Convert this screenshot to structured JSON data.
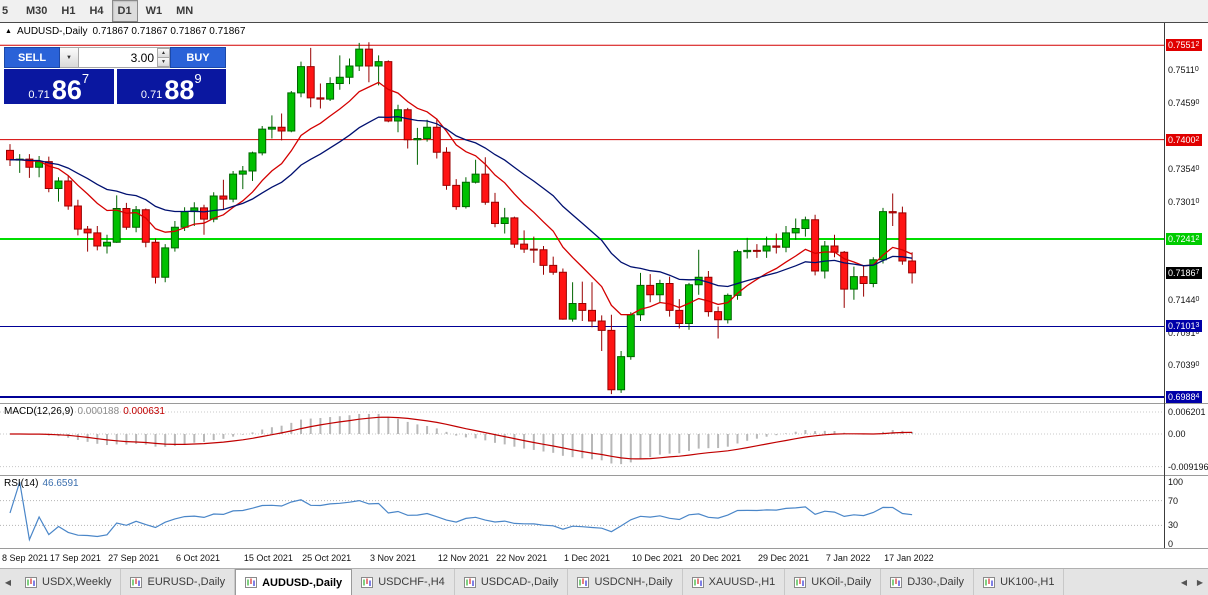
{
  "colors": {
    "button_blue": "#2a62d8",
    "price_navy": "#0a17a0",
    "toolbar_bg": "#f0f0f0",
    "tab_bg": "#e4e4e4"
  },
  "icons": {
    "marker": "▲",
    "dropdown": "▼",
    "spin_up": "▲",
    "spin_down": "▼",
    "scroll_left": "◀",
    "scroll_right": "▶"
  },
  "toolbar": {
    "timeframes": [
      {
        "label": "5",
        "active": false,
        "partial": true
      },
      {
        "label": "M30",
        "active": false
      },
      {
        "label": "H1",
        "active": false
      },
      {
        "label": "H4",
        "active": false
      },
      {
        "label": "D1",
        "active": true
      },
      {
        "label": "W1",
        "active": false
      },
      {
        "label": "MN",
        "active": false
      }
    ]
  },
  "chart": {
    "marker": "▲",
    "title": "AUDUSD-,Daily",
    "ohlc_text": "0.71867 0.71867 0.71867 0.71867"
  },
  "trade_panel": {
    "sell_label": "SELL",
    "buy_label": "BUY",
    "volume": "3.00",
    "sell_price": {
      "small": "0.71",
      "big": "86",
      "sup": "7"
    },
    "buy_price": {
      "small": "0.71",
      "big": "88",
      "sup": "9"
    }
  },
  "chart_data": {
    "type": "candlestick",
    "symbol": "AUDUSD-",
    "period": "Daily",
    "current_price": 0.71867,
    "colors": {
      "up": "#00c000",
      "up_stroke": "#006400",
      "down": "#ff1414",
      "down_stroke": "#990000"
    },
    "candles": [
      [
        0.7383,
        0.7393,
        0.7358,
        0.7368
      ],
      [
        0.7368,
        0.7377,
        0.7347,
        0.7369
      ],
      [
        0.7369,
        0.7377,
        0.7339,
        0.7356
      ],
      [
        0.7356,
        0.7374,
        0.734,
        0.7365
      ],
      [
        0.7365,
        0.7373,
        0.7316,
        0.7322
      ],
      [
        0.7322,
        0.734,
        0.7301,
        0.7334
      ],
      [
        0.7334,
        0.7343,
        0.7288,
        0.7294
      ],
      [
        0.7294,
        0.7304,
        0.7247,
        0.7257
      ],
      [
        0.7257,
        0.7262,
        0.7221,
        0.7251
      ],
      [
        0.7251,
        0.7262,
        0.7223,
        0.723
      ],
      [
        0.723,
        0.7248,
        0.7218,
        0.7236
      ],
      [
        0.7236,
        0.7311,
        0.7235,
        0.729
      ],
      [
        0.729,
        0.7299,
        0.7256,
        0.726
      ],
      [
        0.726,
        0.7294,
        0.7252,
        0.7288
      ],
      [
        0.7288,
        0.729,
        0.7228,
        0.7236
      ],
      [
        0.7236,
        0.7242,
        0.717,
        0.718
      ],
      [
        0.718,
        0.7233,
        0.7172,
        0.7227
      ],
      [
        0.7227,
        0.727,
        0.7221,
        0.726
      ],
      [
        0.726,
        0.7292,
        0.7254,
        0.7285
      ],
      [
        0.7285,
        0.73,
        0.7262,
        0.7291
      ],
      [
        0.7291,
        0.7296,
        0.7248,
        0.7273
      ],
      [
        0.7273,
        0.7316,
        0.7268,
        0.731
      ],
      [
        0.731,
        0.7336,
        0.7288,
        0.7305
      ],
      [
        0.7305,
        0.735,
        0.73,
        0.7345
      ],
      [
        0.7345,
        0.7358,
        0.7321,
        0.735
      ],
      [
        0.735,
        0.7381,
        0.7334,
        0.7379
      ],
      [
        0.7379,
        0.7422,
        0.7375,
        0.7417
      ],
      [
        0.7417,
        0.7439,
        0.7402,
        0.742
      ],
      [
        0.742,
        0.7442,
        0.7399,
        0.7414
      ],
      [
        0.7414,
        0.7478,
        0.7412,
        0.7475
      ],
      [
        0.7475,
        0.7525,
        0.7468,
        0.7517
      ],
      [
        0.7517,
        0.7547,
        0.7452,
        0.7467
      ],
      [
        0.7467,
        0.749,
        0.745,
        0.7465
      ],
      [
        0.7465,
        0.75,
        0.7462,
        0.749
      ],
      [
        0.749,
        0.7535,
        0.748,
        0.75
      ],
      [
        0.75,
        0.753,
        0.7489,
        0.7518
      ],
      [
        0.7518,
        0.7555,
        0.751,
        0.7545
      ],
      [
        0.7545,
        0.7556,
        0.7492,
        0.7518
      ],
      [
        0.7518,
        0.7535,
        0.7487,
        0.7525
      ],
      [
        0.7525,
        0.7527,
        0.7428,
        0.743
      ],
      [
        0.743,
        0.7456,
        0.7412,
        0.7448
      ],
      [
        0.7448,
        0.7451,
        0.7386,
        0.74
      ],
      [
        0.74,
        0.7419,
        0.736,
        0.7402
      ],
      [
        0.7402,
        0.7432,
        0.7397,
        0.742
      ],
      [
        0.742,
        0.7434,
        0.737,
        0.738
      ],
      [
        0.738,
        0.7388,
        0.732,
        0.7327
      ],
      [
        0.7327,
        0.7337,
        0.7288,
        0.7293
      ],
      [
        0.7293,
        0.734,
        0.729,
        0.7332
      ],
      [
        0.7332,
        0.7368,
        0.733,
        0.7345
      ],
      [
        0.7345,
        0.7372,
        0.7296,
        0.73
      ],
      [
        0.73,
        0.7315,
        0.726,
        0.7266
      ],
      [
        0.7266,
        0.7291,
        0.725,
        0.7275
      ],
      [
        0.7275,
        0.7277,
        0.7227,
        0.7233
      ],
      [
        0.7233,
        0.7255,
        0.7219,
        0.7225
      ],
      [
        0.7225,
        0.7245,
        0.7203,
        0.7224
      ],
      [
        0.7224,
        0.723,
        0.7184,
        0.7199
      ],
      [
        0.7199,
        0.7213,
        0.7184,
        0.7188
      ],
      [
        0.7188,
        0.7194,
        0.7112,
        0.7113
      ],
      [
        0.7113,
        0.7172,
        0.7109,
        0.7138
      ],
      [
        0.7138,
        0.7173,
        0.711,
        0.7127
      ],
      [
        0.7127,
        0.7172,
        0.71,
        0.711
      ],
      [
        0.711,
        0.7119,
        0.7062,
        0.7095
      ],
      [
        0.7095,
        0.712,
        0.6993,
        0.7
      ],
      [
        0.7,
        0.7062,
        0.6995,
        0.7053
      ],
      [
        0.7053,
        0.7124,
        0.7048,
        0.712
      ],
      [
        0.712,
        0.7187,
        0.711,
        0.7167
      ],
      [
        0.7167,
        0.7185,
        0.714,
        0.7152
      ],
      [
        0.7152,
        0.7176,
        0.7139,
        0.717
      ],
      [
        0.717,
        0.7181,
        0.7117,
        0.7127
      ],
      [
        0.7127,
        0.7145,
        0.7098,
        0.7106
      ],
      [
        0.7106,
        0.7171,
        0.7096,
        0.7168
      ],
      [
        0.7168,
        0.7224,
        0.7152,
        0.718
      ],
      [
        0.718,
        0.719,
        0.7117,
        0.7125
      ],
      [
        0.7125,
        0.7133,
        0.7082,
        0.7112
      ],
      [
        0.7112,
        0.7154,
        0.7106,
        0.7151
      ],
      [
        0.7151,
        0.7224,
        0.7144,
        0.7221
      ],
      [
        0.7221,
        0.7243,
        0.721,
        0.7223
      ],
      [
        0.7223,
        0.7233,
        0.7211,
        0.7222
      ],
      [
        0.7222,
        0.7245,
        0.7211,
        0.723
      ],
      [
        0.723,
        0.725,
        0.7218,
        0.7228
      ],
      [
        0.7228,
        0.7262,
        0.722,
        0.7251
      ],
      [
        0.7251,
        0.7274,
        0.724,
        0.7258
      ],
      [
        0.7258,
        0.7277,
        0.7245,
        0.7272
      ],
      [
        0.7272,
        0.728,
        0.7183,
        0.719
      ],
      [
        0.719,
        0.7238,
        0.7178,
        0.723
      ],
      [
        0.723,
        0.7248,
        0.7212,
        0.722
      ],
      [
        0.722,
        0.7222,
        0.7131,
        0.7161
      ],
      [
        0.7161,
        0.7197,
        0.7144,
        0.7181
      ],
      [
        0.7181,
        0.7199,
        0.7149,
        0.717
      ],
      [
        0.717,
        0.7212,
        0.7164,
        0.7208
      ],
      [
        0.7208,
        0.7291,
        0.7202,
        0.7285
      ],
      [
        0.7285,
        0.7314,
        0.7262,
        0.7283
      ],
      [
        0.7283,
        0.7293,
        0.72,
        0.7206
      ],
      [
        0.7206,
        0.722,
        0.717,
        0.7187
      ]
    ],
    "ma": [
      {
        "name": "ma-fast",
        "type": "ema",
        "period": 10,
        "color": "#d40000"
      },
      {
        "name": "ma-slow",
        "type": "ema",
        "period": 22,
        "color": "#001070"
      }
    ],
    "hlines": [
      {
        "price": 0.75512,
        "color": "#d40000",
        "width": 1
      },
      {
        "price": 0.74002,
        "color": "#d40000",
        "width": 1
      },
      {
        "price": 0.72412,
        "color": "#00dd00",
        "width": 2
      },
      {
        "price": 0.71013,
        "color": "#000096",
        "width": 1
      },
      {
        "price": 0.69884,
        "color": "#000096",
        "width": 2
      }
    ],
    "price_axis": {
      "plain_labels": [
        {
          "price": 0.7511,
          "text": "0.75110"
        },
        {
          "price": 0.7459,
          "text": "0.74590"
        },
        {
          "price": 0.7354,
          "text": "0.73540"
        },
        {
          "price": 0.7301,
          "text": "0.73010"
        },
        {
          "price": 0.7144,
          "text": "0.71440"
        },
        {
          "price": 0.7091,
          "text": "0.70910"
        },
        {
          "price": 0.7039,
          "text": "0.70390"
        }
      ],
      "boxed_labels": [
        {
          "price": 0.75512,
          "text": "0.75512",
          "color": "#e00000",
          "current": false
        },
        {
          "price": 0.74002,
          "text": "0.74002",
          "color": "#e00000",
          "current": false
        },
        {
          "price": 0.72412,
          "text": "0.72412",
          "color": "#00cc00",
          "current": false
        },
        {
          "price": 0.71867,
          "text": "0.71867",
          "color": "#000000",
          "current": true
        },
        {
          "price": 0.71013,
          "text": "0.71013",
          "color": "#0000a8",
          "current": false
        },
        {
          "price": 0.69884,
          "text": "0.69884",
          "color": "#0000a8",
          "current": false
        }
      ]
    },
    "date_labels": [
      {
        "index": 0,
        "text": "8 Sep 2021"
      },
      {
        "index": 7,
        "text": "17 Sep 2021"
      },
      {
        "index": 13,
        "text": "27 Sep 2021"
      },
      {
        "index": 20,
        "text": "6 Oct 2021"
      },
      {
        "index": 27,
        "text": "15 Oct 2021"
      },
      {
        "index": 33,
        "text": "25 Oct 2021"
      },
      {
        "index": 40,
        "text": "3 Nov 2021"
      },
      {
        "index": 47,
        "text": "12 Nov 2021"
      },
      {
        "index": 53,
        "text": "22 Nov 2021"
      },
      {
        "index": 60,
        "text": "1 Dec 2021"
      },
      {
        "index": 67,
        "text": "10 Dec 2021"
      },
      {
        "index": 73,
        "text": "20 Dec 2021"
      },
      {
        "index": 80,
        "text": "29 Dec 2021"
      },
      {
        "index": 87,
        "text": "7 Jan 2022"
      },
      {
        "index": 93,
        "text": "17 Jan 2022"
      }
    ],
    "indicators": {
      "macd": {
        "label": "MACD(12,26,9)",
        "value_main": "0.000188",
        "value_signal": "0.000631",
        "hist_color": "#b8b8b8",
        "signal_color": "#c00000",
        "axis": [
          {
            "text": "0.006201",
            "value": 0.006201
          },
          {
            "text": "0.00",
            "value": 0
          },
          {
            "text": "-0.009196",
            "value": -0.009196
          }
        ]
      },
      "rsi": {
        "label": "RSI(14)",
        "value": "46.6591",
        "color": "#4a86c8",
        "levels": [
          100,
          70,
          30,
          0
        ],
        "levels_dotted": [
          70,
          30
        ]
      }
    }
  },
  "tabs": {
    "items": [
      {
        "label": "USDX,Weekly",
        "active": false
      },
      {
        "label": "EURUSD-,Daily",
        "active": false
      },
      {
        "label": "AUDUSD-,Daily",
        "active": true
      },
      {
        "label": "USDCHF-,H4",
        "active": false
      },
      {
        "label": "USDCAD-,Daily",
        "active": false
      },
      {
        "label": "USDCNH-,Daily",
        "active": false
      },
      {
        "label": "XAUUSD-,H1",
        "active": false
      },
      {
        "label": "UKOil-,Daily",
        "active": false
      },
      {
        "label": "DJ30-,Daily",
        "active": false
      },
      {
        "label": "UK100-,H1",
        "active": false
      }
    ]
  }
}
